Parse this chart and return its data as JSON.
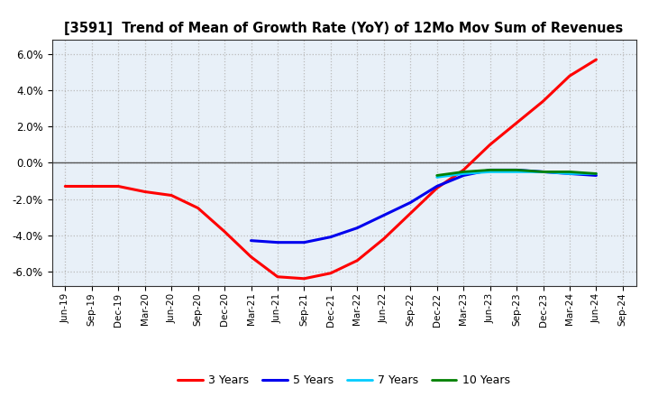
{
  "title": "[3591]  Trend of Mean of Growth Rate (YoY) of 12Mo Mov Sum of Revenues",
  "ylim": [
    -0.068,
    0.068
  ],
  "yticks": [
    -0.06,
    -0.04,
    -0.02,
    0.0,
    0.02,
    0.04,
    0.06
  ],
  "background_color": "#ffffff",
  "plot_bg_color": "#e8f0f8",
  "grid_color": "#bbbbbb",
  "zero_line_color": "#555555",
  "x_labels": [
    "Jun-19",
    "Sep-19",
    "Dec-19",
    "Mar-20",
    "Jun-20",
    "Sep-20",
    "Dec-20",
    "Mar-21",
    "Jun-21",
    "Sep-21",
    "Dec-21",
    "Mar-22",
    "Jun-22",
    "Sep-22",
    "Dec-22",
    "Mar-23",
    "Jun-23",
    "Sep-23",
    "Dec-23",
    "Mar-24",
    "Jun-24",
    "Sep-24"
  ],
  "series": {
    "3 Years": {
      "color": "#ff0000",
      "linewidth": 2.2,
      "data_x": [
        0,
        1,
        2,
        3,
        4,
        5,
        6,
        7,
        8,
        9,
        10,
        11,
        12,
        13,
        14,
        15,
        16,
        17,
        18,
        19,
        20
      ],
      "data_y": [
        -0.013,
        -0.013,
        -0.013,
        -0.016,
        -0.018,
        -0.025,
        -0.038,
        -0.052,
        -0.063,
        -0.064,
        -0.061,
        -0.054,
        -0.042,
        -0.028,
        -0.014,
        -0.004,
        0.01,
        0.022,
        0.034,
        0.048,
        0.057
      ]
    },
    "5 Years": {
      "color": "#0000ee",
      "linewidth": 2.2,
      "data_x": [
        7,
        8,
        9,
        10,
        11,
        12,
        13,
        14,
        15,
        16,
        17,
        18,
        19,
        20
      ],
      "data_y": [
        -0.043,
        -0.044,
        -0.044,
        -0.041,
        -0.036,
        -0.029,
        -0.022,
        -0.013,
        -0.007,
        -0.004,
        -0.004,
        -0.005,
        -0.006,
        -0.007
      ]
    },
    "7 Years": {
      "color": "#00ccff",
      "linewidth": 2.0,
      "data_x": [
        14,
        15,
        16,
        17,
        18,
        19,
        20
      ],
      "data_y": [
        -0.008,
        -0.006,
        -0.005,
        -0.005,
        -0.005,
        -0.006,
        -0.006
      ]
    },
    "10 Years": {
      "color": "#008000",
      "linewidth": 2.0,
      "data_x": [
        14,
        15,
        16,
        17,
        18,
        19,
        20
      ],
      "data_y": [
        -0.007,
        -0.005,
        -0.004,
        -0.004,
        -0.005,
        -0.005,
        -0.006
      ]
    }
  },
  "legend_entries": [
    "3 Years",
    "5 Years",
    "7 Years",
    "10 Years"
  ]
}
